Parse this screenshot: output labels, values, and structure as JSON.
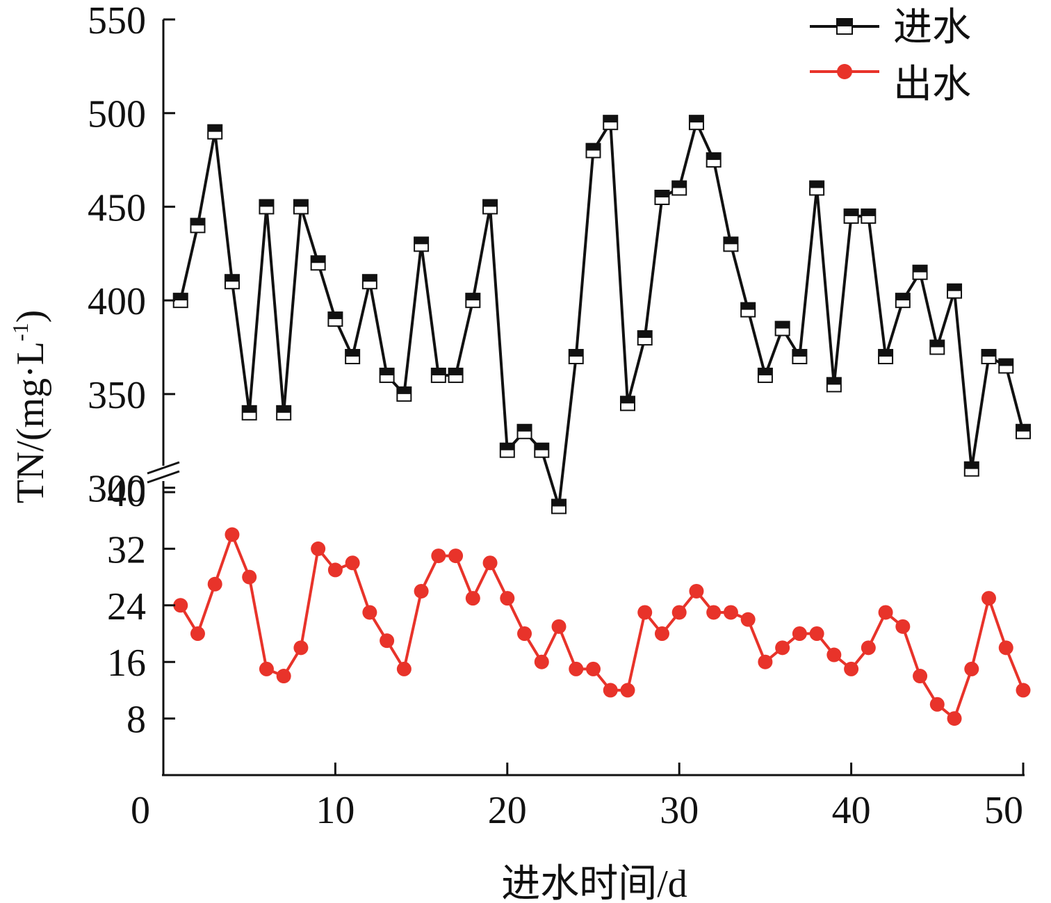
{
  "chart_data": {
    "type": "line",
    "xlabel": "进水时间/d",
    "ylabel": "TN/(mg·L",
    "ylabel_sup": "-1",
    "ylabel_close": ")",
    "xlim": [
      0,
      50
    ],
    "x_ticks": [
      0,
      10,
      20,
      30,
      40,
      50
    ],
    "y_axis_upper": {
      "range": [
        285,
        550
      ],
      "ticks": [
        300,
        350,
        400,
        450,
        500,
        550
      ]
    },
    "y_axis_lower": {
      "range": [
        0,
        40
      ],
      "ticks": [
        8,
        16,
        24,
        32,
        40
      ]
    },
    "axis_break": true,
    "grid": false,
    "legend_position": "top-right",
    "x": [
      1,
      2,
      3,
      4,
      5,
      6,
      7,
      8,
      9,
      10,
      11,
      12,
      13,
      14,
      15,
      16,
      17,
      18,
      19,
      20,
      21,
      22,
      23,
      24,
      25,
      26,
      27,
      28,
      29,
      30,
      31,
      32,
      33,
      34,
      35,
      36,
      37,
      38,
      39,
      40,
      41,
      42,
      43,
      44,
      45,
      46,
      47,
      48,
      49,
      50
    ],
    "series": [
      {
        "name": "进水",
        "color": "#111111",
        "marker": "half-filled-square",
        "axis": "upper",
        "values": [
          400,
          440,
          490,
          410,
          340,
          450,
          340,
          450,
          420,
          390,
          370,
          410,
          360,
          350,
          430,
          360,
          360,
          400,
          450,
          320,
          330,
          320,
          290,
          370,
          480,
          495,
          345,
          380,
          455,
          460,
          495,
          475,
          430,
          395,
          360,
          385,
          370,
          460,
          355,
          445,
          445,
          370,
          400,
          415,
          375,
          405,
          310,
          370,
          365,
          330
        ]
      },
      {
        "name": "出水",
        "color": "#e8332a",
        "marker": "circle",
        "axis": "lower",
        "values": [
          24,
          20,
          27,
          34,
          28,
          15,
          14,
          18,
          32,
          29,
          30,
          23,
          19,
          15,
          26,
          31,
          31,
          25,
          30,
          25,
          20,
          16,
          21,
          15,
          15,
          12,
          12,
          23,
          20,
          23,
          26,
          23,
          23,
          22,
          16,
          18,
          20,
          20,
          17,
          15,
          18,
          23,
          21,
          14,
          10,
          8,
          15,
          25,
          18,
          12
        ]
      }
    ]
  }
}
